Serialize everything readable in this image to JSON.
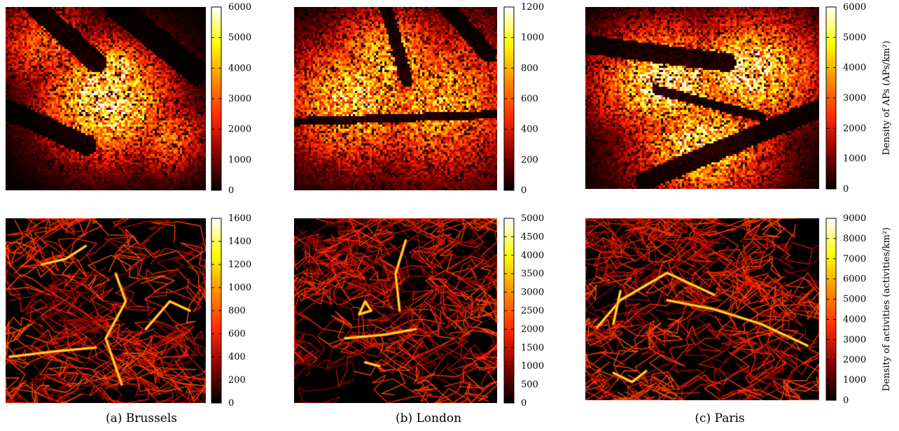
{
  "figure": {
    "captions": [
      "(a) Brussels",
      "(b) London",
      "(c) Paris"
    ]
  },
  "colormap": {
    "name": "black-red-yellow-white heat",
    "stops": [
      "#000000",
      "#8b0000",
      "#ff2a00",
      "#ff8c00",
      "#ffff00",
      "#ffffff"
    ]
  },
  "chart_data": [
    {
      "type": "heatmap",
      "row": "AP density",
      "column": "Brussels",
      "colorbar": {
        "ticks": [
          0,
          1000,
          2000,
          3000,
          4000,
          5000,
          6000
        ],
        "range": [
          0,
          6000
        ],
        "title": ""
      }
    },
    {
      "type": "heatmap",
      "row": "AP density",
      "column": "London",
      "colorbar": {
        "ticks": [
          0,
          200,
          400,
          600,
          800,
          1000,
          1200
        ],
        "range": [
          0,
          1200
        ],
        "title": ""
      }
    },
    {
      "type": "heatmap",
      "row": "AP density",
      "column": "Paris",
      "colorbar": {
        "ticks": [
          0,
          1000,
          2000,
          3000,
          4000,
          5000,
          6000
        ],
        "range": [
          0,
          6000
        ],
        "title": "Density of APs (APs/km²)"
      }
    },
    {
      "type": "heatmap",
      "row": "Activity density",
      "column": "Brussels",
      "colorbar": {
        "ticks": [
          0,
          200,
          400,
          600,
          800,
          1000,
          1200,
          1400,
          1600
        ],
        "range": [
          0,
          1600
        ],
        "title": ""
      }
    },
    {
      "type": "heatmap",
      "row": "Activity density",
      "column": "London",
      "colorbar": {
        "ticks": [
          0,
          500,
          1000,
          1500,
          2000,
          2500,
          3000,
          3500,
          4000,
          4500,
          5000
        ],
        "range": [
          0,
          5000
        ],
        "title": ""
      }
    },
    {
      "type": "heatmap",
      "row": "Activity density",
      "column": "Paris",
      "colorbar": {
        "ticks": [
          0,
          1000,
          2000,
          3000,
          4000,
          5000,
          6000,
          7000,
          8000,
          9000
        ],
        "range": [
          0,
          9000
        ],
        "title": "Density of activities (activities/km²)"
      }
    }
  ]
}
